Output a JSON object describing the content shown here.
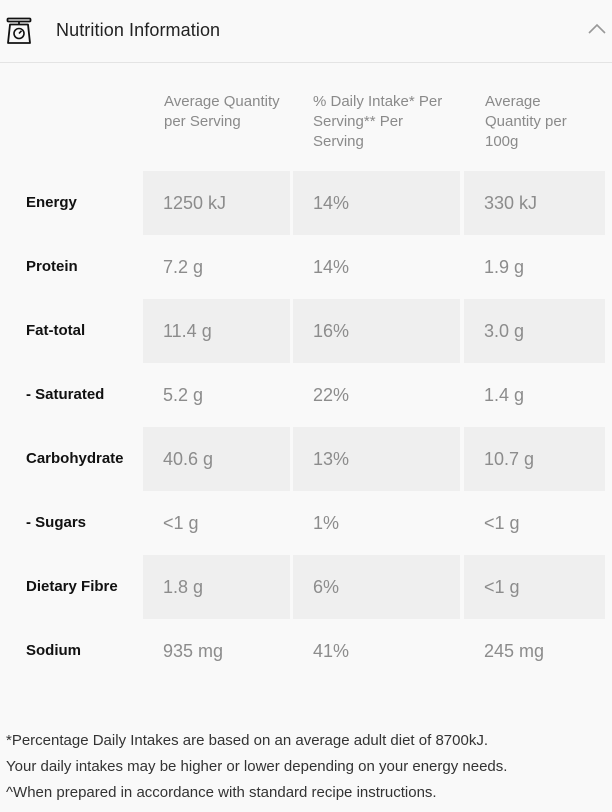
{
  "header": {
    "title": "Nutrition Information",
    "icon": "kitchen-scale-icon",
    "toggle_icon": "chevron-up-icon"
  },
  "columns": [
    "Average Quantity per Serving",
    "% Daily Intake* Per Serving** Per Serving",
    "Average Quantity per 100g"
  ],
  "rows": [
    {
      "label": "Energy",
      "per_serving": "1250 kJ",
      "daily_intake": "14%",
      "per_100g": "330 kJ"
    },
    {
      "label": "Protein",
      "per_serving": "7.2 g",
      "daily_intake": "14%",
      "per_100g": "1.9 g"
    },
    {
      "label": "Fat-total",
      "per_serving": "11.4 g",
      "daily_intake": "16%",
      "per_100g": "3.0 g"
    },
    {
      "label": "- Saturated",
      "per_serving": "5.2 g",
      "daily_intake": "22%",
      "per_100g": "1.4 g"
    },
    {
      "label": "Carbohydrate",
      "per_serving": "40.6 g",
      "daily_intake": "13%",
      "per_100g": "10.7 g"
    },
    {
      "label": "- Sugars",
      "per_serving": "<1 g",
      "daily_intake": "1%",
      "per_100g": "<1 g"
    },
    {
      "label": "Dietary Fibre",
      "per_serving": "1.8 g",
      "daily_intake": "6%",
      "per_100g": "<1 g"
    },
    {
      "label": "Sodium",
      "per_serving": "935 mg",
      "daily_intake": "41%",
      "per_100g": "245 mg"
    }
  ],
  "footnotes": [
    "*Percentage Daily Intakes are based on an average adult diet of 8700kJ.",
    "Your daily intakes may be higher or lower depending on your energy needs.",
    "^When prepared in accordance with standard recipe instructions."
  ],
  "colors": {
    "background": "#f9f9f9",
    "cell_shade": "#efefef",
    "value_text": "#8c8c8c",
    "label_text": "#111111"
  }
}
